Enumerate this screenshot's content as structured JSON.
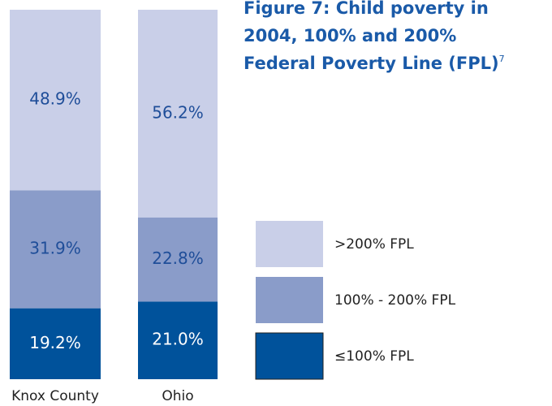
{
  "chart_data": {
    "type": "stacked_bar",
    "title": [
      "Figure 7: Child poverty in",
      "2004, 100% and 200%",
      "Federal Poverty Line (FPL)"
    ],
    "title_superscript": "7",
    "categories": [
      "Knox County",
      "Ohio"
    ],
    "series": [
      {
        "name": "≤100% FPL",
        "color": "#00529b",
        "label_color": "#ffffff",
        "values": [
          19.2,
          21.0
        ],
        "value_labels": [
          "19.2%",
          "21.0%"
        ]
      },
      {
        "name": "100% - 200% FPL",
        "color": "#8a9cc9",
        "label_color": "#1f4e99",
        "values": [
          31.9,
          22.8
        ],
        "value_labels": [
          "31.9%",
          "22.8%"
        ]
      },
      {
        "name": ">200% FPL",
        "color": "#c9cfe8",
        "label_color": "#1f4e99",
        "values": [
          48.9,
          56.2
        ],
        "value_labels": [
          "48.9%",
          "56.2%"
        ]
      }
    ],
    "ylim": [
      0,
      100
    ]
  }
}
